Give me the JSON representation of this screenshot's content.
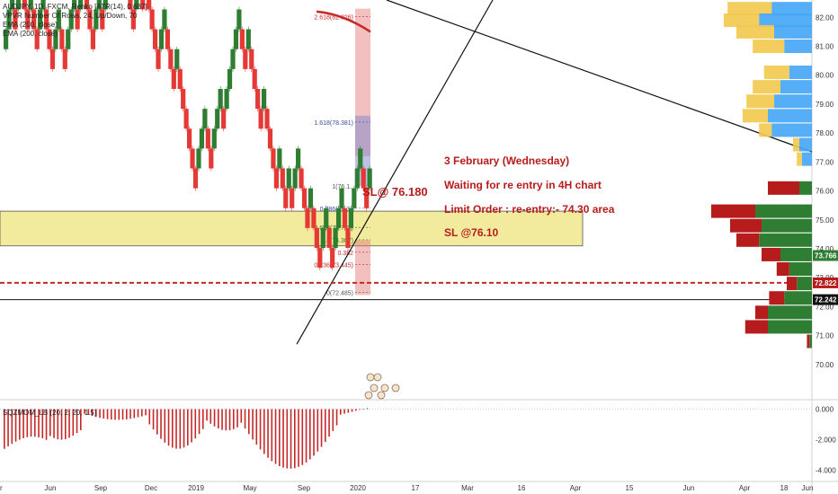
{
  "legend": {
    "line1": "AUDJPY, 1D, FXCM, Renko [ATR(14), 0.687]",
    "line2": "VPVR Number Of Rows, 24, Up/Down, 70",
    "line3": "EMA (200, close)",
    "line4": "EMA (200, close)",
    "oscillator": "SQZMOM_LB (20, 2, 20, 1.5)"
  },
  "annotations": {
    "sl_label": "SL@ 76.180",
    "date_line": "3 February (Wednesday)",
    "waiting_line": "Waiting for re entry in 4H chart",
    "limit_line": "Limit Order : re-entry:- 74.30 area",
    "sl_line": "SL @76.10"
  },
  "fib_labels": [
    "2.618(82.026)",
    "1.618(78.381)",
    "1(76.1..",
    "0.786(75.3..",
    "0.618(74.737)",
    "0.5(74.307)",
    "0.382",
    "0.236(73.445)",
    "0(72.485)"
  ],
  "colors": {
    "bull": "#2e7d32",
    "bear": "#e53935",
    "ema": "#c62828",
    "zone": "#f0e68c",
    "vp_up": "#42a5f5",
    "vp_down": "#f2c94c",
    "vp_up_value_area": "#2e7d32",
    "vp_down_value_area": "#b71c1c",
    "hist_neg": "#c62828",
    "hist_pos": "#43a047",
    "annotation": "#b71c1c"
  },
  "chart_data": [
    {
      "type": "renko_candlestick",
      "symbol": "AUDJPY",
      "timeframe": "1D",
      "source": "FXCM",
      "brick_size": 0.687,
      "ylim": [
        69.0,
        82.6
      ],
      "y_ticks": [
        "82.00",
        "81.00",
        "80.00",
        "79.00",
        "78.00",
        "77.00",
        "76.00",
        "75.00",
        "74.00",
        "73.00",
        "72.00",
        "71.00",
        "70.00"
      ],
      "x_ticks": [
        "r",
        "Jun",
        "Sep",
        "Dec",
        "2019",
        "May",
        "Sep",
        "2020",
        "17",
        "Mar",
        "16",
        "Apr",
        "15",
        "Jun",
        "Apr",
        "18",
        "Jun"
      ],
      "price_labels": [
        {
          "value": 73.766,
          "text": "73.766",
          "color": "#2e7d32"
        },
        {
          "value": 72.822,
          "text": "72.822",
          "color": "#b71c1c"
        },
        {
          "value": 72.242,
          "text": "72.242",
          "color": "#111111"
        }
      ],
      "support_zone": [
        74.1,
        75.3
      ],
      "horizontal_lines": [
        {
          "value": 72.822,
          "style": "dashed",
          "color": "#c62828"
        },
        {
          "value": 72.242,
          "style": "solid",
          "color": "#111111"
        }
      ],
      "volume_profile": [
        {
          "price": 82.3,
          "up": 0.32,
          "down": 0.35
        },
        {
          "price": 81.9,
          "up": 0.42,
          "down": 0.28
        },
        {
          "price": 81.5,
          "up": 0.3,
          "down": 0.3
        },
        {
          "price": 81.0,
          "up": 0.22,
          "down": 0.25
        },
        {
          "price": 80.1,
          "up": 0.18,
          "down": 0.2
        },
        {
          "price": 79.6,
          "up": 0.25,
          "down": 0.22
        },
        {
          "price": 79.1,
          "up": 0.3,
          "down": 0.22
        },
        {
          "price": 78.6,
          "up": 0.35,
          "down": 0.2
        },
        {
          "price": 78.1,
          "up": 0.32,
          "down": 0.1
        },
        {
          "price": 77.6,
          "up": 0.1,
          "down": 0.05
        },
        {
          "price": 77.1,
          "up": 0.08,
          "down": 0.04
        },
        {
          "price": 76.1,
          "up": 0.1,
          "down": 0.25
        },
        {
          "price": 75.3,
          "up": 0.45,
          "down": 0.35
        },
        {
          "price": 74.8,
          "up": 0.4,
          "down": 0.25
        },
        {
          "price": 74.3,
          "up": 0.42,
          "down": 0.18
        },
        {
          "price": 73.8,
          "up": 0.25,
          "down": 0.15
        },
        {
          "price": 73.3,
          "up": 0.18,
          "down": 0.1
        },
        {
          "price": 72.8,
          "up": 0.12,
          "down": 0.08
        },
        {
          "price": 72.3,
          "up": 0.22,
          "down": 0.12
        },
        {
          "price": 71.8,
          "up": 0.35,
          "down": 0.1
        },
        {
          "price": 71.3,
          "up": 0.35,
          "down": 0.18
        },
        {
          "price": 70.8,
          "up": 0.02,
          "down": 0.02
        }
      ]
    },
    {
      "type": "bar",
      "title": "SQZMOM_LB (20, 2, 20, 1.5)",
      "ylim": [
        -4.5,
        0.5
      ],
      "y_ticks": [
        "0.000",
        "-2.000",
        "-4.000"
      ]
    }
  ]
}
